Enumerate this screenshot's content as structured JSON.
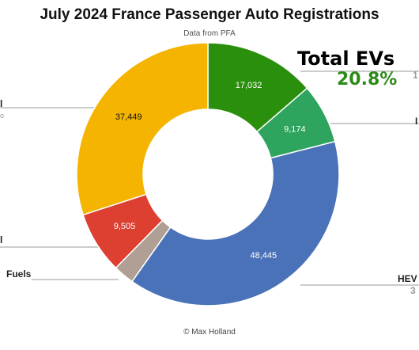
{
  "chart_data": {
    "type": "pie",
    "donut": true,
    "title": "July 2024 France Passenger Auto Registrations",
    "subtitle": "Data from PFA",
    "credit": "© Max Holland",
    "start_angle_deg": 0,
    "direction": "clockwise",
    "slices": [
      {
        "value": 17032,
        "label": "17,032",
        "color": "#2a8f0c"
      },
      {
        "value": 9174,
        "label": "9,174",
        "color": "#2ea45e"
      },
      {
        "value": 48445,
        "label": "48,445",
        "color": "#4a72b8"
      },
      {
        "value": 3210,
        "label": "",
        "color": "#b09f94"
      },
      {
        "value": 9505,
        "label": "9,505",
        "color": "#dd3f31"
      },
      {
        "value": 37449,
        "label": "37,449",
        "color": "#f5b400"
      }
    ],
    "annotation": {
      "title": "Total EVs",
      "value": "20.8%"
    },
    "clipped_labels": {
      "top_right_number": "1",
      "right_mid": "I",
      "hev": "HEV",
      "hev_sub": "3",
      "left_top": "l",
      "left_top_sub": "o",
      "left_mid": "l",
      "fuels": "Fuels"
    }
  }
}
